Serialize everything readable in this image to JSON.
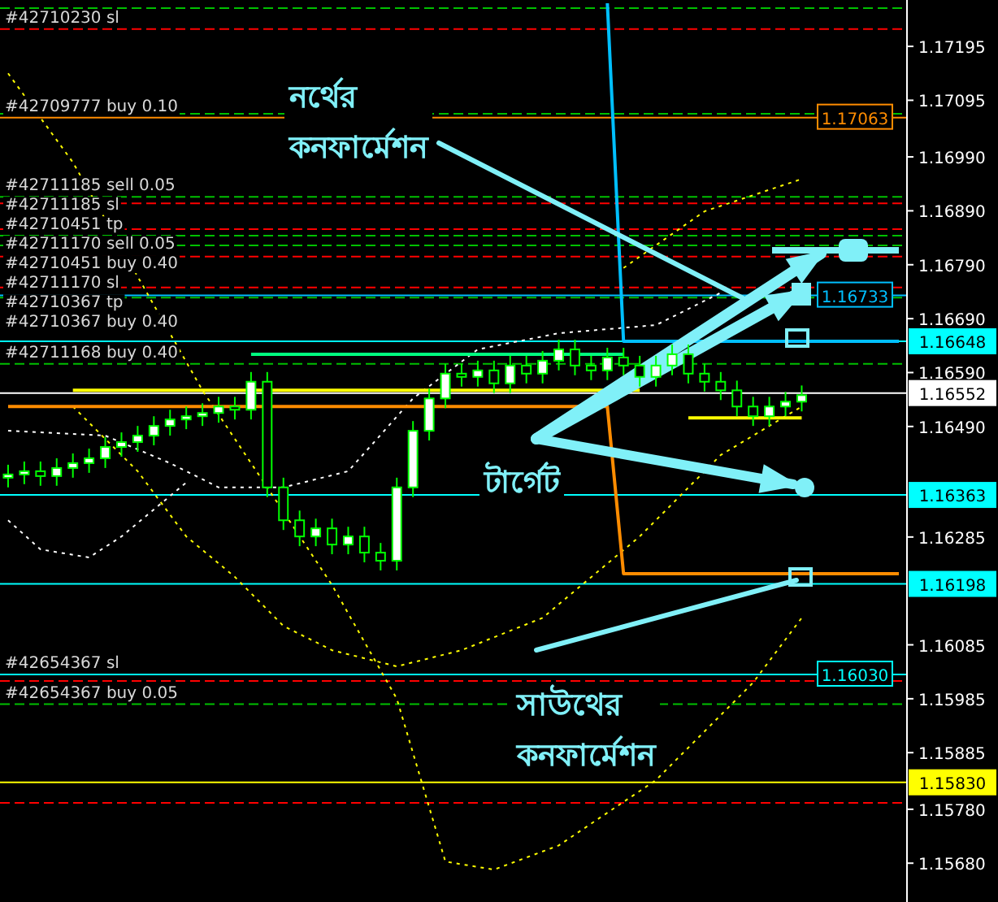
{
  "chart_data": {
    "type": "candlestick",
    "categories": [
      null,
      null,
      null,
      null,
      null,
      null,
      null,
      null,
      null,
      null,
      null,
      null,
      null,
      null,
      null,
      null,
      null,
      null,
      null,
      null,
      null,
      null,
      null,
      null,
      null,
      null,
      null,
      null,
      null,
      null,
      null,
      null,
      null,
      null,
      null,
      null,
      null,
      null,
      null,
      null,
      null,
      null,
      null,
      null,
      null,
      null,
      null,
      null,
      null,
      null,
      null,
      null,
      null,
      null,
      null,
      null
    ],
    "series": [
      {
        "color": "#00ff00",
        "ohlc": [
          [
            1.16395,
            1.16419,
            1.16377,
            1.16401
          ],
          [
            1.16401,
            1.16425,
            1.16383,
            1.16407
          ],
          [
            1.16407,
            1.16425,
            1.1638,
            1.16398
          ],
          [
            1.16398,
            1.16431,
            1.1638,
            1.16413
          ],
          [
            1.16413,
            1.1644,
            1.16395,
            1.16422
          ],
          [
            1.16422,
            1.16449,
            1.16404,
            1.16431
          ],
          [
            1.16431,
            1.1647,
            1.16413,
            1.16452
          ],
          [
            1.16452,
            1.16479,
            1.16434,
            1.16461
          ],
          [
            1.16461,
            1.16491,
            1.16443,
            1.16473
          ],
          [
            1.16473,
            1.16509,
            1.16455,
            1.16491
          ],
          [
            1.16491,
            1.16521,
            1.16473,
            1.16503
          ],
          [
            1.16503,
            1.16527,
            1.16485,
            1.16509
          ],
          [
            1.16509,
            1.16533,
            1.16491,
            1.16515
          ],
          [
            1.16515,
            1.16545,
            1.16497,
            1.16527
          ],
          [
            1.16527,
            1.16545,
            1.16503,
            1.16521
          ],
          [
            1.16521,
            1.16591,
            1.16503,
            1.16573
          ],
          [
            1.16573,
            1.16591,
            1.16359,
            1.16377
          ],
          [
            1.16377,
            1.16395,
            1.16298,
            1.16316
          ],
          [
            1.16316,
            1.16334,
            1.16268,
            1.16286
          ],
          [
            1.16286,
            1.16319,
            1.16268,
            1.16301
          ],
          [
            1.16301,
            1.16319,
            1.16253,
            1.16271
          ],
          [
            1.16271,
            1.16304,
            1.16253,
            1.16286
          ],
          [
            1.16286,
            1.16304,
            1.16238,
            1.16256
          ],
          [
            1.16256,
            1.16274,
            1.16223,
            1.16241
          ],
          [
            1.16241,
            1.16395,
            1.16223,
            1.16377
          ],
          [
            1.16377,
            1.165,
            1.16359,
            1.16482
          ],
          [
            1.16482,
            1.1656,
            1.16464,
            1.16542
          ],
          [
            1.16542,
            1.16606,
            1.16524,
            1.16588
          ],
          [
            1.16588,
            1.16606,
            1.16564,
            1.16582
          ],
          [
            1.16582,
            1.16612,
            1.16564,
            1.16594
          ],
          [
            1.16594,
            1.16612,
            1.16552,
            1.1657
          ],
          [
            1.1657,
            1.16621,
            1.16552,
            1.16603
          ],
          [
            1.16603,
            1.16621,
            1.1657,
            1.16588
          ],
          [
            1.16588,
            1.1663,
            1.1657,
            1.16612
          ],
          [
            1.16612,
            1.16651,
            1.16594,
            1.16633
          ],
          [
            1.16633,
            1.16651,
            1.16585,
            1.16603
          ],
          [
            1.16603,
            1.16621,
            1.16576,
            1.16594
          ],
          [
            1.16594,
            1.16636,
            1.16576,
            1.16618
          ],
          [
            1.16618,
            1.16636,
            1.16585,
            1.16603
          ],
          [
            1.16603,
            1.16621,
            1.16564,
            1.16582
          ],
          [
            1.16582,
            1.16621,
            1.16564,
            1.16603
          ],
          [
            1.16603,
            1.16642,
            1.16585,
            1.16624
          ],
          [
            1.16624,
            1.16642,
            1.1657,
            1.16588
          ],
          [
            1.16588,
            1.16606,
            1.16555,
            1.16573
          ],
          [
            1.16573,
            1.16591,
            1.16539,
            1.16557
          ],
          [
            1.16557,
            1.16575,
            1.16509,
            1.16527
          ],
          [
            1.16527,
            1.16545,
            1.16491,
            1.16509
          ],
          [
            1.16509,
            1.16545,
            1.16491,
            1.16527
          ],
          [
            1.16527,
            1.16554,
            1.16509,
            1.16536
          ],
          [
            1.16536,
            1.16566,
            1.16518,
            1.16548
          ],
          null,
          null,
          null,
          null,
          null,
          null
        ]
      },
      {
        "type": "line",
        "color": "#ffff00",
        "line_style": "dotted",
        "values": [
          1.17145,
          null,
          null,
          null,
          1.1698,
          null,
          null,
          null,
          1.16768,
          null,
          null,
          null,
          1.16557,
          null,
          null,
          null,
          1.16377,
          null,
          null,
          null,
          1.16196,
          null,
          null,
          null,
          1.15985,
          null,
          null,
          1.15683,
          null,
          null,
          1.15668,
          null,
          null,
          null,
          1.15713,
          null,
          null,
          null,
          null,
          null,
          1.15834,
          null,
          null,
          null,
          null,
          null,
          1.16015,
          null,
          null,
          1.16135,
          null,
          null,
          null,
          null,
          null,
          null
        ]
      },
      {
        "type": "line",
        "color": "#ffff00",
        "line_style": "dotted",
        "values": [
          null,
          null,
          null,
          null,
          1.16527,
          null,
          null,
          null,
          1.16407,
          null,
          null,
          1.16286,
          null,
          null,
          1.16211,
          null,
          null,
          1.1612,
          null,
          null,
          1.16075,
          null,
          null,
          null,
          1.16045,
          null,
          null,
          null,
          1.16075,
          null,
          null,
          null,
          null,
          1.16135,
          null,
          null,
          null,
          null,
          null,
          1.16286,
          null,
          null,
          null,
          null,
          1.16437,
          null,
          null,
          null,
          null,
          1.16527,
          null,
          null,
          null,
          null,
          null,
          null
        ]
      },
      {
        "type": "line",
        "color": "#ffff00",
        "line_style": "dotted",
        "values": [
          null,
          null,
          null,
          null,
          null,
          null,
          null,
          null,
          null,
          null,
          null,
          null,
          null,
          null,
          null,
          null,
          null,
          null,
          null,
          null,
          null,
          null,
          null,
          null,
          null,
          null,
          null,
          null,
          null,
          null,
          null,
          null,
          null,
          null,
          null,
          null,
          null,
          null,
          1.16784,
          null,
          null,
          null,
          null,
          1.16889,
          null,
          null,
          null,
          null,
          null,
          1.16949,
          null,
          null,
          null,
          null,
          null,
          null
        ]
      },
      {
        "type": "line",
        "color": "#ffffff",
        "line_style": "dotted",
        "values": [
          1.16482,
          null,
          null,
          null,
          null,
          null,
          1.16473,
          null,
          null,
          null,
          1.16422,
          null,
          null,
          1.16377,
          null,
          null,
          null,
          1.16377,
          null,
          null,
          null,
          1.16407,
          null,
          null,
          null,
          1.16542,
          null,
          null,
          null,
          1.16633,
          null,
          null,
          null,
          null,
          1.16663,
          null,
          null,
          null,
          null,
          null,
          1.16678,
          null,
          null,
          null,
          1.16738,
          null,
          null,
          null,
          null,
          null,
          null,
          null,
          null,
          null,
          null,
          null
        ]
      },
      {
        "type": "line",
        "color": "#ffffff",
        "line_style": "dotted",
        "values": [
          1.16316,
          null,
          1.16262,
          null,
          null,
          1.16247,
          null,
          1.16286,
          null,
          null,
          null,
          1.16386,
          null,
          null,
          null,
          null,
          null,
          null,
          null,
          null,
          null,
          null,
          null,
          null,
          null,
          null,
          null,
          null,
          null,
          null,
          null,
          null,
          null,
          null,
          null,
          null,
          null,
          null,
          null,
          null,
          null,
          null,
          null,
          null,
          null,
          null,
          null,
          null,
          null,
          null,
          null,
          null,
          null,
          null,
          null,
          null
        ]
      },
      {
        "type": "line",
        "color": "#00ff7f",
        "line_style": "solid",
        "values": [
          null,
          null,
          null,
          null,
          null,
          null,
          null,
          null,
          null,
          null,
          null,
          null,
          null,
          null,
          null,
          1.16624,
          null,
          null,
          null,
          null,
          null,
          null,
          null,
          null,
          null,
          null,
          null,
          null,
          null,
          null,
          null,
          null,
          null,
          null,
          null,
          null,
          null,
          null,
          1.16624,
          null,
          null,
          null,
          null,
          null,
          null,
          null,
          null,
          null,
          null,
          null,
          null,
          null,
          null,
          null,
          null,
          null
        ]
      },
      {
        "type": "line",
        "color": "#ffff00",
        "line_style": "solid",
        "values": [
          null,
          null,
          null,
          null,
          1.16557,
          null,
          null,
          null,
          null,
          null,
          null,
          null,
          null,
          null,
          null,
          null,
          null,
          null,
          null,
          null,
          null,
          null,
          null,
          null,
          null,
          null,
          null,
          null,
          null,
          null,
          null,
          null,
          null,
          null,
          null,
          null,
          null,
          null,
          null,
          1.16557,
          null,
          null,
          null,
          null,
          null,
          null,
          null,
          null,
          null,
          null,
          null,
          null,
          null,
          null,
          null,
          null
        ]
      },
      {
        "type": "line",
        "color": "#ffff00",
        "line_style": "solid",
        "values": [
          null,
          null,
          null,
          null,
          null,
          null,
          null,
          null,
          null,
          null,
          null,
          null,
          null,
          null,
          null,
          null,
          null,
          null,
          null,
          null,
          null,
          null,
          null,
          null,
          null,
          null,
          null,
          null,
          null,
          null,
          null,
          null,
          null,
          null,
          null,
          null,
          null,
          null,
          null,
          null,
          null,
          null,
          1.16506,
          null,
          null,
          null,
          null,
          null,
          null,
          1.16506,
          null,
          null,
          null,
          null,
          null,
          null
        ]
      },
      {
        "type": "line",
        "color": "#ff8c00",
        "line_style": "solid",
        "values": [
          1.16527,
          null,
          null,
          null,
          null,
          null,
          null,
          null,
          null,
          null,
          null,
          null,
          null,
          null,
          null,
          null,
          null,
          null,
          null,
          null,
          null,
          null,
          null,
          null,
          null,
          null,
          null,
          null,
          null,
          null,
          null,
          null,
          null,
          null,
          null,
          null,
          null,
          1.16527,
          1.16217,
          null,
          null,
          null,
          null,
          null,
          null,
          null,
          null,
          null,
          null,
          null,
          null,
          null,
          null,
          null,
          null,
          1.16217
        ]
      },
      {
        "type": "line",
        "color": "#00bfff",
        "line_style": "solid",
        "values": [
          null,
          null,
          null,
          null,
          null,
          null,
          null,
          null,
          null,
          null,
          null,
          null,
          null,
          null,
          null,
          null,
          null,
          null,
          null,
          null,
          null,
          null,
          null,
          null,
          null,
          null,
          null,
          null,
          null,
          null,
          null,
          null,
          null,
          null,
          null,
          null,
          null,
          1.17275,
          1.16648,
          null,
          null,
          null,
          null,
          null,
          null,
          null,
          null,
          null,
          null,
          null,
          null,
          null,
          null,
          null,
          null,
          1.16648
        ]
      }
    ],
    "ylim": [
      1.15608,
      1.17281
    ],
    "yticks": [
      {
        "value": 1.17195,
        "label": "1.17195"
      },
      {
        "value": 1.17095,
        "label": "1.17095"
      },
      {
        "value": 1.1699,
        "label": "1.16990"
      },
      {
        "value": 1.1689,
        "label": "1.16890"
      },
      {
        "value": 1.1679,
        "label": "1.16790"
      },
      {
        "value": 1.1669,
        "label": "1.16690"
      },
      {
        "value": 1.1659,
        "label": "1.16590"
      },
      {
        "value": 1.1649,
        "label": "1.16490"
      },
      {
        "value": 1.16285,
        "label": "1.16285"
      },
      {
        "value": 1.16085,
        "label": "1.16085"
      },
      {
        "value": 1.15985,
        "label": "1.15985"
      },
      {
        "value": 1.15885,
        "label": "1.15885"
      },
      {
        "value": 1.1578,
        "label": "1.15780"
      },
      {
        "value": 1.1568,
        "label": "1.15680"
      }
    ],
    "ref_lines": [
      {
        "axis": "y",
        "value": 1.17266,
        "color": "#00c000",
        "line_style": "dashed"
      },
      {
        "axis": "y",
        "value": 1.17227,
        "color": "#ff0000",
        "line_style": "dashed"
      },
      {
        "axis": "y",
        "value": 1.1707,
        "color": "#00c000",
        "line_style": "dashed"
      },
      {
        "axis": "y",
        "value": 1.17063,
        "label": "1.17063",
        "color": "#ff8c00",
        "line_style": "solid"
      },
      {
        "axis": "y",
        "value": 1.16916,
        "color": "#00c000",
        "line_style": "dashed"
      },
      {
        "axis": "y",
        "value": 1.16904,
        "color": "#ff0000",
        "line_style": "dashed"
      },
      {
        "axis": "y",
        "value": 1.16856,
        "color": "#ff0000",
        "line_style": "dashed"
      },
      {
        "axis": "y",
        "value": 1.16844,
        "color": "#00c000",
        "line_style": "dashed"
      },
      {
        "axis": "y",
        "value": 1.16826,
        "color": "#00c000",
        "line_style": "dashed"
      },
      {
        "axis": "y",
        "value": 1.16805,
        "color": "#ff0000",
        "line_style": "dashed"
      },
      {
        "axis": "y",
        "value": 1.16748,
        "color": "#ff0000",
        "line_style": "dashed"
      },
      {
        "axis": "y",
        "value": 1.16733,
        "label": "1.16733",
        "color": "#00bfff",
        "line_style": "solid"
      },
      {
        "axis": "y",
        "value": 1.16729,
        "color": "#00c000",
        "line_style": "dashed"
      },
      {
        "axis": "y",
        "value": 1.16648,
        "label": "1.16648",
        "color": "#00ffff",
        "line_style": "solid"
      },
      {
        "axis": "y",
        "value": 1.16606,
        "color": "#00c000",
        "line_style": "dashed"
      },
      {
        "axis": "y",
        "value": 1.16552,
        "label": "1.16552",
        "color": "#ffffff",
        "line_style": "solid"
      },
      {
        "axis": "y",
        "value": 1.16363,
        "label": "1.16363",
        "color": "#00ffff",
        "line_style": "solid"
      },
      {
        "axis": "y",
        "value": 1.16198,
        "label": "1.16198",
        "color": "#00ffff",
        "line_style": "solid"
      },
      {
        "axis": "y",
        "value": 1.1603,
        "label": "1.16030",
        "color": "#00ffff",
        "line_style": "solid"
      },
      {
        "axis": "y",
        "value": 1.16018,
        "color": "#ff0000",
        "line_style": "dashed"
      },
      {
        "axis": "y",
        "value": 1.15975,
        "color": "#00c000",
        "line_style": "dashed"
      },
      {
        "axis": "y",
        "value": 1.1583,
        "label": "1.15830",
        "color": "#ffff00",
        "line_style": "solid"
      },
      {
        "axis": "y",
        "value": 1.15792,
        "color": "#ff0000",
        "line_style": "dashed"
      }
    ],
    "annotations": [
      "নর্থের কনফার্মেশন",
      "টার্গেট",
      "সাউথের কনফার্মেশন",
      {
        "text": "#42710230 sl",
        "y": 1.17227
      },
      {
        "text": "#42709777 buy 0.10",
        "y": 1.17063
      },
      {
        "text": "#42711185 sell 0.05",
        "y": 1.16916
      },
      {
        "text": "#42711185 sl",
        "y": 1.16904
      },
      {
        "text": "#42710451 tp",
        "y": 1.16856
      },
      {
        "text": "#42711170 sell 0.05",
        "y": 1.16844
      },
      {
        "text": "#42710451 buy 0.40",
        "y": 1.16826
      },
      {
        "text": "#42711170 sl",
        "y": 1.16805
      },
      {
        "text": "#42710367 tp",
        "y": 1.16748
      },
      {
        "text": "#42710367 buy 0.40",
        "y": 1.16733
      },
      {
        "text": "#42711168 buy 0.40",
        "y": 1.16606
      },
      {
        "text": "#42654367 sl",
        "y": 1.1603
      },
      {
        "text": "#42654367 buy 0.05",
        "y": 1.15975
      }
    ],
    "tick_labels": "y"
  }
}
